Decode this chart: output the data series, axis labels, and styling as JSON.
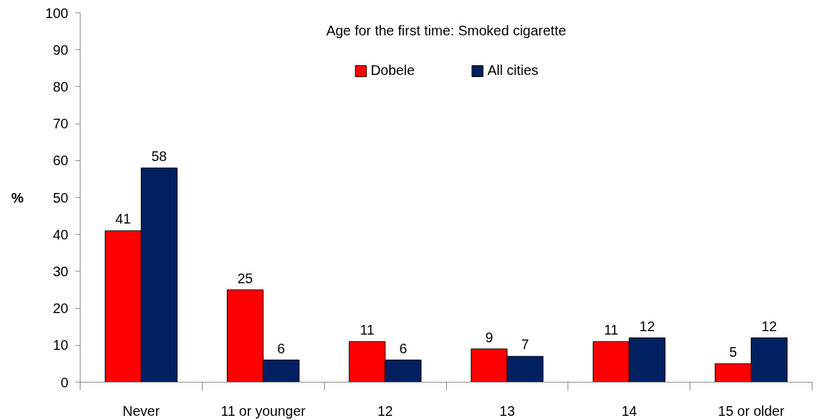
{
  "chart_data": {
    "type": "bar",
    "title": "Age for the first time: Smoked cigarette",
    "ylabel": "%",
    "categories": [
      "Never",
      "11 or younger",
      "12",
      "13",
      "14",
      "15 or older"
    ],
    "series": [
      {
        "name": "Dobele",
        "color": "#ff0000",
        "values": [
          41,
          25,
          11,
          9,
          11,
          5
        ]
      },
      {
        "name": "All cities",
        "color": "#002060",
        "values": [
          58,
          6,
          6,
          7,
          12,
          12
        ]
      }
    ],
    "ylim": [
      0,
      100
    ],
    "yticks": [
      0,
      10,
      20,
      30,
      40,
      50,
      60,
      70,
      80,
      90,
      100
    ],
    "data_labels": true,
    "legend": "top"
  }
}
